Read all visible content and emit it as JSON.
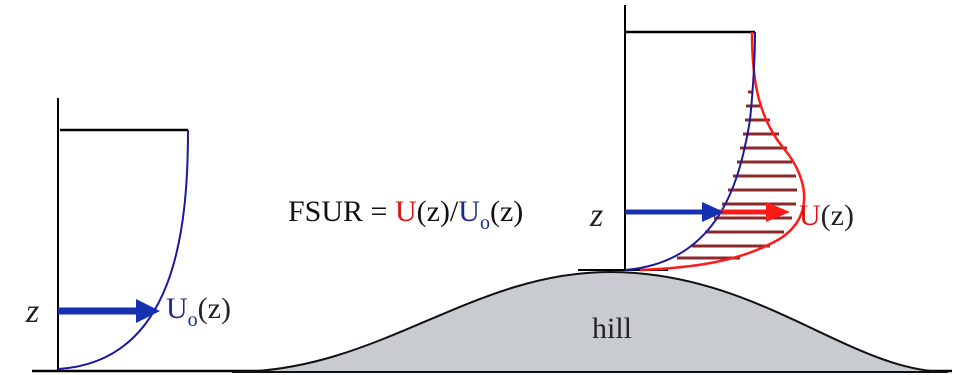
{
  "left_profile": {
    "z_label": "z",
    "velocity_symbol": "U",
    "velocity_subscript": "o",
    "velocity_arg": "(z)"
  },
  "hill": {
    "label": "hill"
  },
  "formula": {
    "lhs": "FSUR = ",
    "num_symbol": "U",
    "num_arg": "(z)/",
    "den_symbol": "U",
    "den_subscript": "o",
    "den_arg": "(z)"
  },
  "right_profile": {
    "z_label": "z",
    "velocity_symbol": "U",
    "velocity_arg": "(z)"
  },
  "colors": {
    "axis": "#000000",
    "upstream_profile": "#1a1a9c",
    "upstream_arrow": "#1530b0",
    "speedup_profile": "#ff1a1a",
    "speedup_hatch": "#8b2a2a",
    "hill_fill": "#c8ccd0",
    "label_blue": "#1a2b8c",
    "label_red": "#e01010"
  }
}
